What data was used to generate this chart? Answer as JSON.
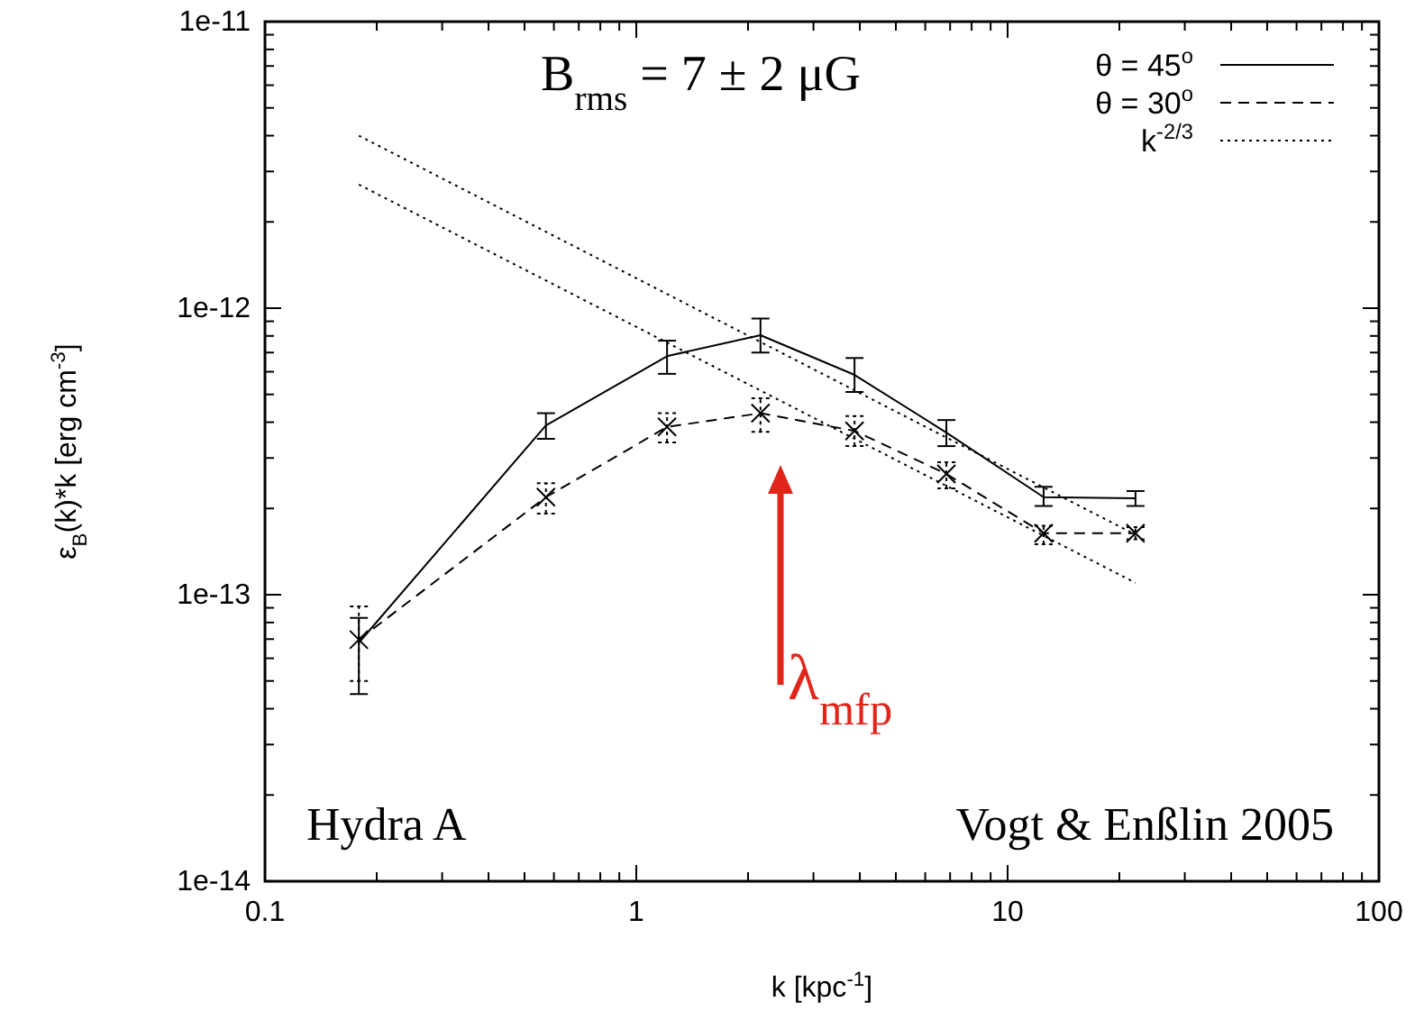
{
  "chart_data": {
    "type": "line",
    "xlabel": "k [kpc$^{-1}$]",
    "ylabel": "ε$_{B}$(k)*k  [erg cm$^{-3}$]",
    "log": "xy",
    "grid": false,
    "legend": "top right",
    "xlim": [
      0.1,
      100
    ],
    "xticks": [
      0.1,
      1,
      10,
      100
    ],
    "ylim": [
      1e-14,
      1e-11
    ],
    "yticks": [
      {
        "value": 1e-14,
        "label": "1e-14"
      },
      {
        "value": 1e-13,
        "label": "1e-13"
      },
      {
        "value": 1e-12,
        "label": "1e-12"
      },
      {
        "value": 1e-11,
        "label": "1e-11"
      }
    ],
    "series": [
      {
        "name": "θ = 45$^{o}$",
        "color": "#000000",
        "line_style": "solid",
        "marker": "none",
        "x": [
          0.179,
          0.571,
          1.21,
          2.16,
          3.87,
          6.84,
          12.5,
          22.1
        ],
        "values": [
          6.8e-14,
          3.9e-13,
          6.8e-13,
          8.05e-13,
          5.85e-13,
          3.68e-13,
          2.19e-13,
          2.17e-13
        ],
        "errors": [
          [
            4.5e-14,
            8.3e-14
          ],
          [
            3.5e-13,
            4.3e-13
          ],
          [
            5.9e-13,
            7.7e-13
          ],
          [
            7e-13,
            9.2e-13
          ],
          [
            5.1e-13,
            6.7e-13
          ],
          [
            3.3e-13,
            4.07e-13
          ],
          [
            2.04e-13,
            2.38e-13
          ],
          [
            2.04e-13,
            2.3e-13
          ]
        ]
      },
      {
        "name": "θ = 30$^{o}$",
        "color": "#000000",
        "line_style": "dashed",
        "marker": "cross",
        "x": [
          0.179,
          0.571,
          1.21,
          2.16,
          3.87,
          6.84,
          12.5,
          22.1
        ],
        "values": [
          6.97e-14,
          2.19e-13,
          3.85e-13,
          4.3e-13,
          3.73e-13,
          2.64e-13,
          1.64e-13,
          1.64e-13
        ],
        "errors": [
          [
            5e-14,
            9.1e-14
          ],
          [
            1.92e-13,
            2.45e-13
          ],
          [
            3.4e-13,
            4.3e-13
          ],
          [
            3.7e-13,
            4.85e-13
          ],
          [
            3.3e-13,
            4.2e-13
          ],
          [
            2.35e-13,
            2.9e-13
          ],
          [
            1.5e-13,
            1.74e-13
          ],
          [
            1.56e-13,
            1.72e-13
          ]
        ]
      },
      {
        "name": "k$^{-2/3}$",
        "color": "#000000",
        "line_style": "dotted",
        "marker": "none",
        "x": [
          0.179,
          22.1
        ],
        "values": [
          4e-12,
          1.62e-13
        ]
      },
      {
        "color": "#000000",
        "line_style": "dotted",
        "marker": "none",
        "x": [
          0.179,
          22.1
        ],
        "values": [
          2.7e-12,
          1.1e-13
        ]
      }
    ],
    "annotations": [
      "B$_{rms}$ = 7 ± 2 μG",
      "λ$_{mfp}$",
      "Hydra A",
      "Vogt & Enßlin 2005"
    ]
  }
}
